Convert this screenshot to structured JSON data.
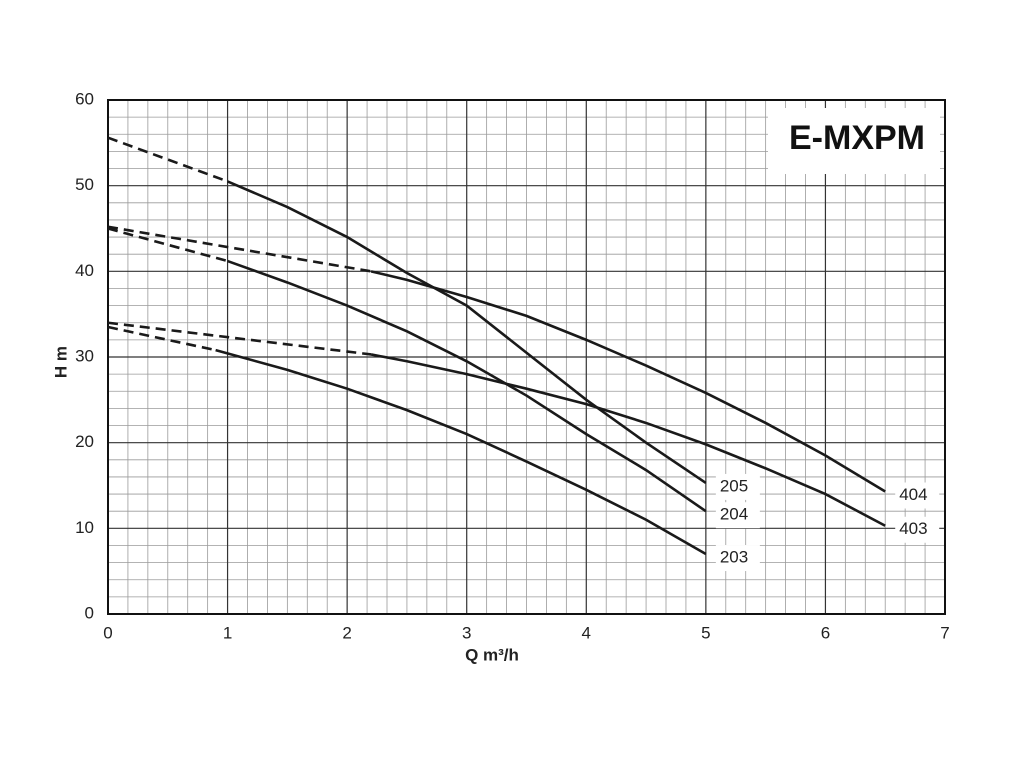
{
  "chart_data": {
    "type": "line",
    "title": "E-MXPM",
    "x_label": "Q m³/h",
    "y_label": "H m",
    "xlim": [
      0,
      7
    ],
    "ylim": [
      0,
      60
    ],
    "xticks": [
      0,
      1,
      2,
      3,
      4,
      5,
      6,
      7
    ],
    "yticks": [
      0,
      10,
      20,
      30,
      40,
      50,
      60
    ],
    "grid": true,
    "minor_grid": {
      "x": 6,
      "y": 5
    },
    "color": "#1a1a1a",
    "series": [
      {
        "name": "205",
        "dashed_to": 1,
        "x": [
          0,
          1,
          1.5,
          2,
          2.5,
          3,
          3.5,
          4,
          4.5,
          5
        ],
        "values": [
          55.6,
          50.5,
          47.5,
          44,
          39.8,
          36,
          30.5,
          25,
          20,
          15.3
        ]
      },
      {
        "name": "204",
        "dashed_to": 1,
        "x": [
          0,
          1,
          1.5,
          2,
          2.5,
          3,
          3.5,
          4,
          4.5,
          5
        ],
        "values": [
          45,
          41.2,
          38.7,
          36,
          33,
          29.5,
          25.5,
          21,
          16.8,
          12
        ]
      },
      {
        "name": "203",
        "dashed_to": 0.9,
        "x": [
          0,
          0.9,
          1.5,
          2,
          2.5,
          3,
          3.5,
          4,
          4.5,
          5
        ],
        "values": [
          33.5,
          30.8,
          28.5,
          26.3,
          23.8,
          21,
          17.8,
          14.5,
          11,
          7
        ]
      },
      {
        "name": "404",
        "dashed_to": 2.2,
        "x": [
          0,
          2.2,
          2.5,
          3,
          3.5,
          4,
          4.5,
          5,
          5.5,
          6,
          6.5
        ],
        "values": [
          45.2,
          40,
          39,
          37,
          34.8,
          32,
          29,
          25.8,
          22.3,
          18.5,
          14.3
        ]
      },
      {
        "name": "403",
        "dashed_to": 2.2,
        "x": [
          0,
          2.2,
          2.5,
          3,
          3.5,
          4,
          4.5,
          5,
          5.5,
          6,
          6.5
        ],
        "values": [
          34,
          30.3,
          29.5,
          28,
          26.3,
          24.5,
          22.3,
          19.8,
          17,
          14,
          10.3
        ]
      }
    ]
  }
}
